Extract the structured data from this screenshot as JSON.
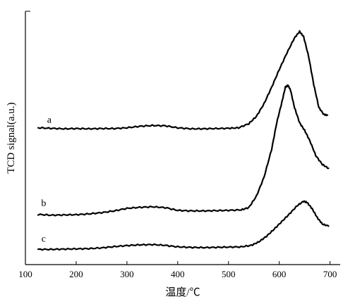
{
  "chart_data": {
    "type": "line",
    "title": "",
    "xlabel": "温度/℃",
    "ylabel": "TCD signal(a.u.)",
    "xlim": [
      100,
      720
    ],
    "x_ticks": [
      100,
      200,
      300,
      400,
      500,
      600,
      700
    ],
    "y_ticks_shown": false,
    "grid": false,
    "legend": "none",
    "y_unit": "arbitrary (baseline offsets per curve)",
    "series": [
      {
        "label": "a",
        "label_at": [
          147,
          0.56
        ],
        "points": [
          [
            125,
            0.54
          ],
          [
            150,
            0.538
          ],
          [
            175,
            0.536
          ],
          [
            200,
            0.537
          ],
          [
            225,
            0.536
          ],
          [
            250,
            0.537
          ],
          [
            275,
            0.537
          ],
          [
            300,
            0.54
          ],
          [
            325,
            0.546
          ],
          [
            350,
            0.549
          ],
          [
            375,
            0.548
          ],
          [
            400,
            0.54
          ],
          [
            425,
            0.536
          ],
          [
            450,
            0.536
          ],
          [
            475,
            0.537
          ],
          [
            500,
            0.538
          ],
          [
            520,
            0.54
          ],
          [
            540,
            0.556
          ],
          [
            555,
            0.585
          ],
          [
            570,
            0.635
          ],
          [
            585,
            0.7
          ],
          [
            600,
            0.77
          ],
          [
            615,
            0.835
          ],
          [
            630,
            0.895
          ],
          [
            640,
            0.92
          ],
          [
            648,
            0.9
          ],
          [
            658,
            0.82
          ],
          [
            668,
            0.71
          ],
          [
            678,
            0.62
          ],
          [
            688,
            0.592
          ],
          [
            695,
            0.59
          ]
        ]
      },
      {
        "label": "b",
        "label_at": [
          136,
          0.23
        ],
        "points": [
          [
            125,
            0.198
          ],
          [
            150,
            0.195
          ],
          [
            175,
            0.196
          ],
          [
            200,
            0.197
          ],
          [
            225,
            0.2
          ],
          [
            250,
            0.205
          ],
          [
            275,
            0.212
          ],
          [
            300,
            0.222
          ],
          [
            325,
            0.226
          ],
          [
            350,
            0.228
          ],
          [
            375,
            0.225
          ],
          [
            400,
            0.214
          ],
          [
            425,
            0.212
          ],
          [
            450,
            0.212
          ],
          [
            475,
            0.213
          ],
          [
            500,
            0.214
          ],
          [
            525,
            0.216
          ],
          [
            540,
            0.225
          ],
          [
            555,
            0.27
          ],
          [
            570,
            0.345
          ],
          [
            585,
            0.455
          ],
          [
            595,
            0.56
          ],
          [
            605,
            0.64
          ],
          [
            612,
            0.7
          ],
          [
            617,
            0.708
          ],
          [
            622,
            0.69
          ],
          [
            630,
            0.62
          ],
          [
            640,
            0.56
          ],
          [
            650,
            0.53
          ],
          [
            660,
            0.49
          ],
          [
            672,
            0.43
          ],
          [
            685,
            0.395
          ],
          [
            697,
            0.38
          ]
        ]
      },
      {
        "label": "c",
        "label_at": [
          136,
          0.09
        ],
        "points": [
          [
            125,
            0.06
          ],
          [
            150,
            0.06
          ],
          [
            175,
            0.061
          ],
          [
            200,
            0.062
          ],
          [
            225,
            0.063
          ],
          [
            250,
            0.066
          ],
          [
            275,
            0.071
          ],
          [
            300,
            0.075
          ],
          [
            325,
            0.078
          ],
          [
            350,
            0.079
          ],
          [
            375,
            0.076
          ],
          [
            400,
            0.07
          ],
          [
            425,
            0.068
          ],
          [
            450,
            0.067
          ],
          [
            475,
            0.068
          ],
          [
            500,
            0.069
          ],
          [
            525,
            0.07
          ],
          [
            545,
            0.076
          ],
          [
            560,
            0.09
          ],
          [
            575,
            0.112
          ],
          [
            590,
            0.14
          ],
          [
            605,
            0.17
          ],
          [
            620,
            0.2
          ],
          [
            635,
            0.232
          ],
          [
            648,
            0.25
          ],
          [
            655,
            0.245
          ],
          [
            665,
            0.22
          ],
          [
            675,
            0.185
          ],
          [
            685,
            0.16
          ],
          [
            697,
            0.152
          ]
        ]
      }
    ]
  }
}
